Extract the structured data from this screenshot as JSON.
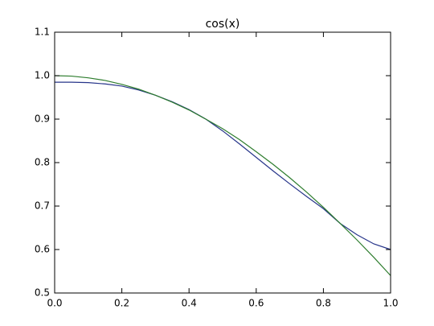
{
  "chart_data": {
    "type": "line",
    "title": "cos(x)",
    "x": [
      0,
      0.05,
      0.1,
      0.15,
      0.2,
      0.25,
      0.3,
      0.35,
      0.4,
      0.45,
      0.5,
      0.55,
      0.6,
      0.65,
      0.7,
      0.75,
      0.8,
      0.85,
      0.9,
      0.95,
      1.0
    ],
    "series": [
      {
        "color": "#27358a",
        "values": [
          0.985,
          0.985,
          0.984,
          0.981,
          0.976,
          0.967,
          0.955,
          0.94,
          0.922,
          0.9,
          0.873,
          0.843,
          0.812,
          0.781,
          0.751,
          0.722,
          0.694,
          0.66,
          0.634,
          0.613,
          0.6
        ]
      },
      {
        "color": "#2e7d2e",
        "values": [
          1.0,
          0.999,
          0.995,
          0.989,
          0.98,
          0.969,
          0.955,
          0.939,
          0.921,
          0.9,
          0.878,
          0.853,
          0.825,
          0.796,
          0.765,
          0.732,
          0.697,
          0.66,
          0.622,
          0.582,
          0.54
        ]
      }
    ],
    "xlim": [
      0,
      1.0
    ],
    "xticks": [
      {
        "value": 0,
        "label": "0.0"
      },
      0.2,
      0.4,
      0.6,
      0.8,
      {
        "value": 1,
        "label": "1.0"
      }
    ],
    "ylim": [
      0.5,
      1.1
    ],
    "yticks": [
      0.5,
      0.6,
      0.7,
      0.8,
      0.9,
      {
        "value": 1,
        "label": "1.0"
      },
      1.1
    ],
    "grid": false
  }
}
